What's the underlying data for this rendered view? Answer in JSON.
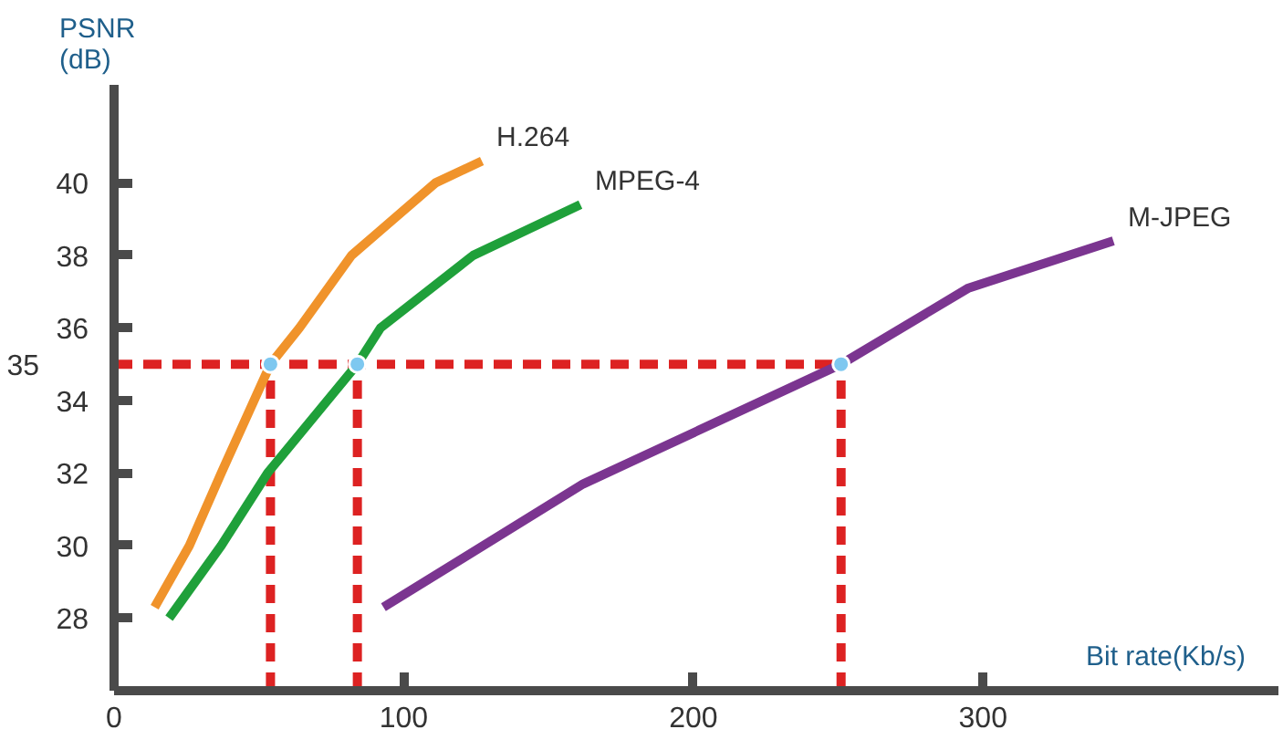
{
  "chart_data": {
    "type": "line",
    "xlabel": "Bit rate(Kb/s)",
    "ylabel": "PSNR (dB)",
    "xlim": [
      0,
      402
    ],
    "ylim": [
      26,
      42.7
    ],
    "xticks": [
      0,
      100,
      200,
      300
    ],
    "yticks": [
      28,
      30,
      32,
      34,
      36,
      38,
      40
    ],
    "grid": false,
    "annotations": [
      {
        "text": "35",
        "x": 0,
        "y": 35
      }
    ],
    "series": [
      {
        "type": "line",
        "line_style": "dashed",
        "color": "#dd2222",
        "x": [
          0,
          251
        ],
        "values": [
          35,
          35
        ]
      },
      {
        "type": "line",
        "line_style": "dashed",
        "color": "#dd2222",
        "x": [
          54,
          54
        ],
        "values": [
          26,
          35
        ]
      },
      {
        "type": "line",
        "line_style": "dashed",
        "color": "#dd2222",
        "x": [
          84,
          84
        ],
        "values": [
          26,
          35
        ]
      },
      {
        "type": "line",
        "line_style": "dashed",
        "color": "#dd2222",
        "x": [
          251,
          251
        ],
        "values": [
          26,
          35
        ]
      },
      {
        "name": "H.264",
        "color": "#f0932b",
        "x": [
          14,
          26,
          37,
          54,
          64,
          82,
          111,
          127
        ],
        "values": [
          28.3,
          30,
          32,
          35,
          36,
          38,
          40,
          40.6
        ]
      },
      {
        "name": "MPEG-4",
        "color": "#1fa03a",
        "x": [
          19,
          37,
          53,
          84,
          92,
          124,
          161
        ],
        "values": [
          28,
          30,
          32,
          35,
          36,
          38,
          39.4
        ]
      },
      {
        "name": "M-JPEG",
        "color": "#7b3590",
        "x": [
          93,
          162,
          251,
          295,
          345
        ],
        "values": [
          28.3,
          31.7,
          35,
          37.1,
          38.4
        ]
      },
      {
        "type": "scatter",
        "marker": "circle",
        "color": "#7ec8f0",
        "x": [
          54,
          84,
          251
        ],
        "values": [
          35,
          35,
          35
        ]
      }
    ]
  }
}
